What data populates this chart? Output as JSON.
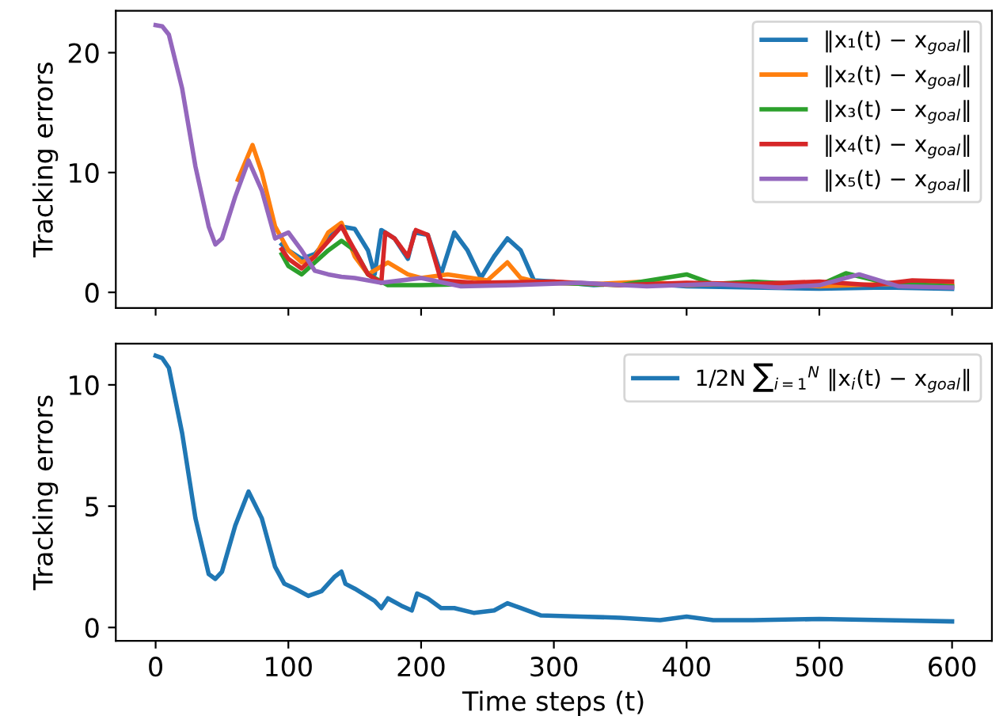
{
  "chart_data": [
    {
      "type": "line",
      "ylabel": "Tracking errors",
      "xlim": [
        -30,
        630
      ],
      "ylim": [
        -1.3,
        23.5
      ],
      "xticks": [
        0,
        100,
        200,
        300,
        400,
        500,
        600
      ],
      "yticks": [
        0,
        10,
        20
      ],
      "tick_labels": "y",
      "legend": "top right",
      "grid": false,
      "series": [
        {
          "name": "‖x₁(t) − x$_{goal}$‖",
          "color": "#1f77b4",
          "x": [
            95,
            100,
            110,
            120,
            130,
            140,
            150,
            160,
            165,
            170,
            180,
            190,
            195,
            205,
            215,
            225,
            235,
            245,
            255,
            265,
            275,
            285,
            300,
            330,
            360,
            400,
            450,
            500,
            550,
            600
          ],
          "values": [
            4.0,
            3.5,
            2.8,
            3.2,
            4.5,
            5.5,
            5.3,
            3.5,
            1.5,
            5.2,
            4.5,
            2.8,
            5.0,
            4.8,
            1.5,
            5.0,
            3.5,
            1.2,
            3.0,
            4.5,
            3.5,
            1.0,
            0.9,
            0.6,
            0.8,
            0.5,
            0.4,
            0.3,
            0.4,
            0.3
          ]
        },
        {
          "name": "‖x₂(t) − x$_{goal}$‖",
          "color": "#ff7f0e",
          "x": [
            62,
            73,
            80,
            90,
            100,
            110,
            120,
            130,
            140,
            150,
            160,
            175,
            190,
            200,
            220,
            250,
            265,
            275,
            290,
            330,
            370,
            400,
            450,
            500,
            550,
            600
          ],
          "values": [
            9.4,
            12.3,
            10,
            5.5,
            3.5,
            2.5,
            3.0,
            5.0,
            5.8,
            3.0,
            1.5,
            2.5,
            1.5,
            1.2,
            1.5,
            1.0,
            2.5,
            1.2,
            0.8,
            0.7,
            0.9,
            0.6,
            0.8,
            0.5,
            0.7,
            0.6
          ]
        },
        {
          "name": "‖x₃(t) − x$_{goal}$‖",
          "color": "#2ca02c",
          "x": [
            95,
            100,
            110,
            120,
            130,
            140,
            150,
            160,
            175,
            200,
            250,
            300,
            350,
            400,
            420,
            450,
            500,
            520,
            550,
            600
          ],
          "values": [
            3.2,
            2.2,
            1.5,
            2.5,
            3.5,
            4.3,
            3.5,
            1.5,
            0.6,
            0.6,
            0.7,
            0.8,
            0.6,
            1.5,
            0.7,
            0.9,
            0.6,
            1.6,
            0.8,
            0.5
          ]
        },
        {
          "name": "‖x₄(t) − x$_{goal}$‖",
          "color": "#d62728",
          "x": [
            95,
            100,
            110,
            120,
            140,
            160,
            170,
            173,
            180,
            190,
            196,
            205,
            215,
            240,
            300,
            350,
            400,
            450,
            500,
            540,
            570,
            600
          ],
          "values": [
            3.6,
            2.8,
            2.0,
            3.0,
            5.5,
            1.5,
            0.8,
            5.0,
            4.5,
            3.0,
            5.2,
            4.8,
            1.0,
            0.8,
            0.9,
            0.6,
            0.8,
            0.7,
            0.9,
            0.6,
            1.0,
            0.9
          ]
        },
        {
          "name": "‖x₅(t) − x$_{goal}$‖",
          "color": "#9467bd",
          "x": [
            0,
            5,
            10,
            20,
            30,
            40,
            45,
            50,
            60,
            70,
            80,
            90,
            100,
            110,
            120,
            130,
            140,
            150,
            170,
            200,
            230,
            270,
            320,
            370,
            420,
            470,
            500,
            530,
            560,
            600
          ],
          "values": [
            22.3,
            22.2,
            21.5,
            17,
            10.5,
            5.5,
            4.0,
            4.5,
            8,
            11,
            8.5,
            4.5,
            5.0,
            3.5,
            1.8,
            1.5,
            1.3,
            1.2,
            0.8,
            1.2,
            0.5,
            0.6,
            0.8,
            0.5,
            0.7,
            0.4,
            0.6,
            1.5,
            0.5,
            0.4
          ]
        }
      ]
    },
    {
      "type": "line",
      "xlabel": "Time steps (t)",
      "ylabel": "Tracking errors",
      "xlim": [
        -30,
        630
      ],
      "ylim": [
        -0.55,
        11.7
      ],
      "xticks": [
        0,
        100,
        200,
        300,
        400,
        500,
        600
      ],
      "yticks": [
        0,
        5,
        10
      ],
      "legend": "top right",
      "grid": false,
      "series": [
        {
          "name": "1/2N ∑$_{i=1}$$^{N}$ ‖x$_{i}$(t) − x$_{goal}$‖",
          "color": "#1f77b4",
          "x": [
            0,
            5,
            10,
            20,
            30,
            40,
            45,
            50,
            60,
            70,
            80,
            90,
            97,
            105,
            115,
            125,
            135,
            140,
            143,
            150,
            165,
            170,
            175,
            185,
            193,
            197,
            205,
            215,
            225,
            240,
            255,
            265,
            275,
            290,
            320,
            350,
            380,
            400,
            420,
            450,
            500,
            550,
            600
          ],
          "values": [
            11.2,
            11.1,
            10.7,
            8,
            4.5,
            2.2,
            2.0,
            2.3,
            4.2,
            5.6,
            4.5,
            2.5,
            1.8,
            1.6,
            1.3,
            1.5,
            2.1,
            2.3,
            1.8,
            1.6,
            1.1,
            0.8,
            1.2,
            0.9,
            0.7,
            1.4,
            1.2,
            0.8,
            0.8,
            0.6,
            0.7,
            1.0,
            0.8,
            0.5,
            0.45,
            0.4,
            0.3,
            0.45,
            0.3,
            0.3,
            0.35,
            0.3,
            0.25
          ]
        }
      ]
    }
  ]
}
